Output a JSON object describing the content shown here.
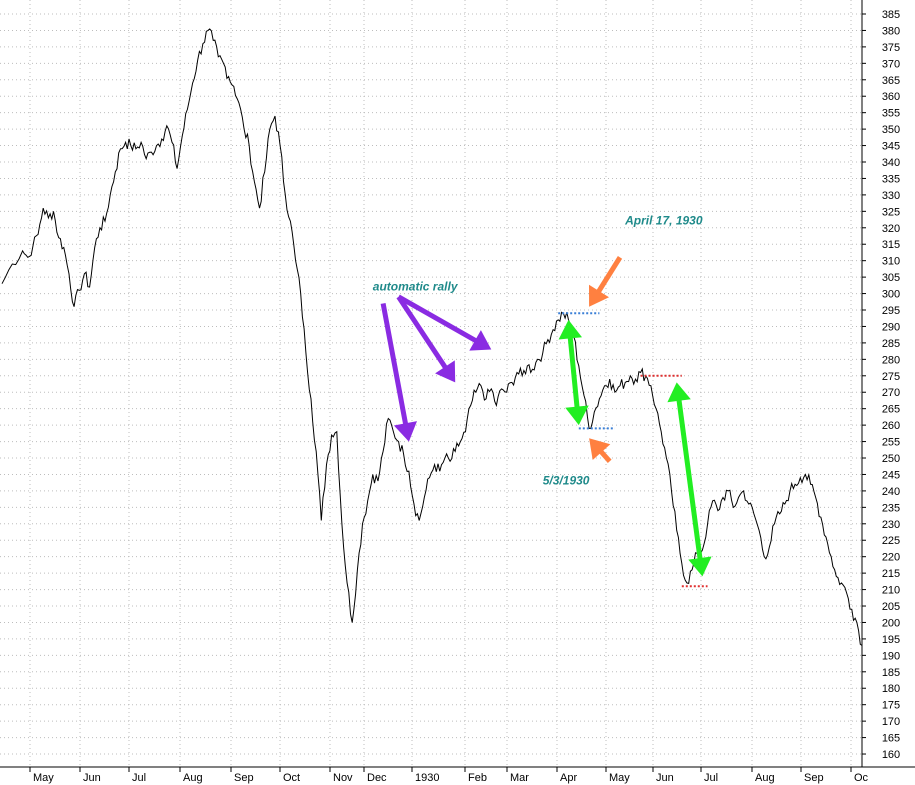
{
  "chart_data": {
    "type": "line",
    "title": "",
    "xlabel": "",
    "ylabel": "",
    "ylim": [
      160,
      385
    ],
    "y_tick_step": 5,
    "grid": true,
    "x_tick_labels": [
      "May",
      "Jun",
      "Jul",
      "Aug",
      "Sep",
      "Oct",
      "Nov",
      "Dec",
      "1930",
      "Feb",
      "Mar",
      "Apr",
      "May",
      "Jun",
      "Jul",
      "Aug",
      "Sep",
      "Oc"
    ],
    "series": [
      {
        "name": "",
        "color": "#000000",
        "points": [
          [
            0,
            303
          ],
          [
            2,
            309
          ],
          [
            4,
            313
          ],
          [
            5,
            311
          ],
          [
            7,
            318
          ],
          [
            8,
            326
          ],
          [
            9,
            323
          ],
          [
            10,
            325
          ],
          [
            11,
            317
          ],
          [
            12,
            314
          ],
          [
            13,
            306
          ],
          [
            14,
            296
          ],
          [
            15,
            301
          ],
          [
            16,
            306
          ],
          [
            17,
            302
          ],
          [
            18,
            314
          ],
          [
            19,
            320
          ],
          [
            20,
            322
          ],
          [
            21,
            330
          ],
          [
            22,
            337
          ],
          [
            23,
            344
          ],
          [
            24,
            346
          ],
          [
            25,
            345
          ],
          [
            26,
            344
          ],
          [
            27,
            346
          ],
          [
            28,
            341
          ],
          [
            29,
            343
          ],
          [
            30,
            345
          ],
          [
            31,
            347
          ],
          [
            32,
            351
          ],
          [
            33,
            346
          ],
          [
            34,
            338
          ],
          [
            35,
            348
          ],
          [
            36,
            356
          ],
          [
            37,
            364
          ],
          [
            38,
            371
          ],
          [
            39,
            376
          ],
          [
            40,
            380
          ],
          [
            41,
            377
          ],
          [
            42,
            372
          ],
          [
            43,
            370
          ],
          [
            44,
            366
          ],
          [
            45,
            363
          ],
          [
            46,
            358
          ],
          [
            47,
            350
          ],
          [
            48,
            345
          ],
          [
            49,
            334
          ],
          [
            50,
            326
          ],
          [
            51,
            337
          ],
          [
            52,
            350
          ],
          [
            53,
            354
          ],
          [
            54,
            345
          ],
          [
            55,
            330
          ],
          [
            56,
            322
          ],
          [
            57,
            310
          ],
          [
            58,
            300
          ],
          [
            59,
            282
          ],
          [
            60,
            268
          ],
          [
            61,
            252
          ],
          [
            62,
            231
          ],
          [
            63,
            248
          ],
          [
            64,
            257
          ],
          [
            65,
            258
          ],
          [
            66,
            230
          ],
          [
            67,
            212
          ],
          [
            68,
            200
          ],
          [
            69,
            216
          ],
          [
            70,
            230
          ],
          [
            71,
            237
          ],
          [
            72,
            245
          ],
          [
            73,
            243
          ],
          [
            74,
            252
          ],
          [
            75,
            262
          ],
          [
            76,
            258
          ],
          [
            77,
            255
          ],
          [
            78,
            251
          ],
          [
            79,
            246
          ],
          [
            80,
            236
          ],
          [
            81,
            231
          ],
          [
            82,
            238
          ],
          [
            83,
            244
          ],
          [
            84,
            248
          ],
          [
            85,
            246
          ],
          [
            86,
            250
          ],
          [
            87,
            249
          ],
          [
            88,
            252
          ],
          [
            89,
            255
          ],
          [
            90,
            258
          ],
          [
            91,
            266
          ],
          [
            92,
            270
          ],
          [
            93,
            272
          ],
          [
            94,
            268
          ],
          [
            95,
            271
          ],
          [
            96,
            266
          ],
          [
            97,
            271
          ],
          [
            98,
            270
          ],
          [
            99,
            273
          ],
          [
            100,
            276
          ],
          [
            101,
            275
          ],
          [
            102,
            278
          ],
          [
            103,
            277
          ],
          [
            104,
            280
          ],
          [
            105,
            282
          ],
          [
            106,
            286
          ],
          [
            107,
            289
          ],
          [
            108,
            292
          ],
          [
            109,
            294
          ],
          [
            110,
            292
          ],
          [
            111,
            287
          ],
          [
            112,
            278
          ],
          [
            113,
            269
          ],
          [
            114,
            259
          ],
          [
            115,
            264
          ],
          [
            116,
            268
          ],
          [
            117,
            272
          ],
          [
            118,
            274
          ],
          [
            119,
            270
          ],
          [
            120,
            272
          ],
          [
            121,
            273
          ],
          [
            122,
            275
          ],
          [
            123,
            274
          ],
          [
            124,
            276
          ],
          [
            125,
            275
          ],
          [
            126,
            272
          ],
          [
            127,
            265
          ],
          [
            128,
            258
          ],
          [
            129,
            250
          ],
          [
            130,
            240
          ],
          [
            131,
            228
          ],
          [
            132,
            218
          ],
          [
            133,
            212
          ],
          [
            134,
            216
          ],
          [
            135,
            221
          ],
          [
            136,
            222
          ],
          [
            137,
            230
          ],
          [
            138,
            237
          ],
          [
            139,
            234
          ],
          [
            140,
            238
          ],
          [
            141,
            240
          ],
          [
            142,
            235
          ],
          [
            143,
            238
          ],
          [
            144,
            240
          ],
          [
            145,
            236
          ],
          [
            146,
            233
          ],
          [
            147,
            228
          ],
          [
            148,
            220
          ],
          [
            149,
            223
          ],
          [
            150,
            230
          ],
          [
            151,
            233
          ],
          [
            152,
            236
          ],
          [
            153,
            240
          ],
          [
            154,
            242
          ],
          [
            155,
            244
          ],
          [
            156,
            245
          ],
          [
            157,
            242
          ],
          [
            158,
            238
          ],
          [
            159,
            232
          ],
          [
            160,
            226
          ],
          [
            161,
            220
          ],
          [
            162,
            214
          ],
          [
            163,
            212
          ],
          [
            164,
            209
          ],
          [
            165,
            204
          ],
          [
            166,
            200
          ],
          [
            167,
            193
          ]
        ]
      }
    ],
    "annotations": [
      {
        "kind": "text",
        "text": "automatic rally",
        "x": 72,
        "y": 301
      },
      {
        "kind": "text",
        "text": "April 17, 1930",
        "x": 121,
        "y": 321
      },
      {
        "kind": "text",
        "text": "5/3/1930",
        "x": 105,
        "y": 242
      },
      {
        "kind": "level",
        "color": "#3a7fd6",
        "x1": 108,
        "x2": 116,
        "y": 294
      },
      {
        "kind": "level",
        "color": "#3a7fd6",
        "x1": 112,
        "x2": 119,
        "y": 259
      },
      {
        "kind": "level",
        "color": "#e03030",
        "x1": 124,
        "x2": 132,
        "y": 275
      },
      {
        "kind": "level",
        "color": "#e03030",
        "x1": 132,
        "x2": 137,
        "y": 211
      },
      {
        "kind": "arrow",
        "color": "#8a2be2",
        "from": [
          74,
          297
        ],
        "to": [
          79,
          255
        ]
      },
      {
        "kind": "arrow",
        "color": "#8a2be2",
        "from": [
          77,
          299
        ],
        "to": [
          88,
          273
        ]
      },
      {
        "kind": "arrow",
        "color": "#8a2be2",
        "from": [
          77,
          299
        ],
        "to": [
          95,
          283
        ]
      },
      {
        "kind": "arrow",
        "color": "#ff8040",
        "from": [
          120,
          311
        ],
        "to": [
          114,
          296
        ]
      },
      {
        "kind": "arrow",
        "color": "#ff8040",
        "from": [
          118,
          249
        ],
        "to": [
          114,
          256
        ]
      },
      {
        "kind": "double-arrow",
        "color": "#22ee22",
        "from": [
          110,
          292
        ],
        "to": [
          112,
          260
        ]
      },
      {
        "kind": "double-arrow",
        "color": "#22ee22",
        "from": [
          131,
          273
        ],
        "to": [
          136,
          214
        ]
      }
    ]
  }
}
